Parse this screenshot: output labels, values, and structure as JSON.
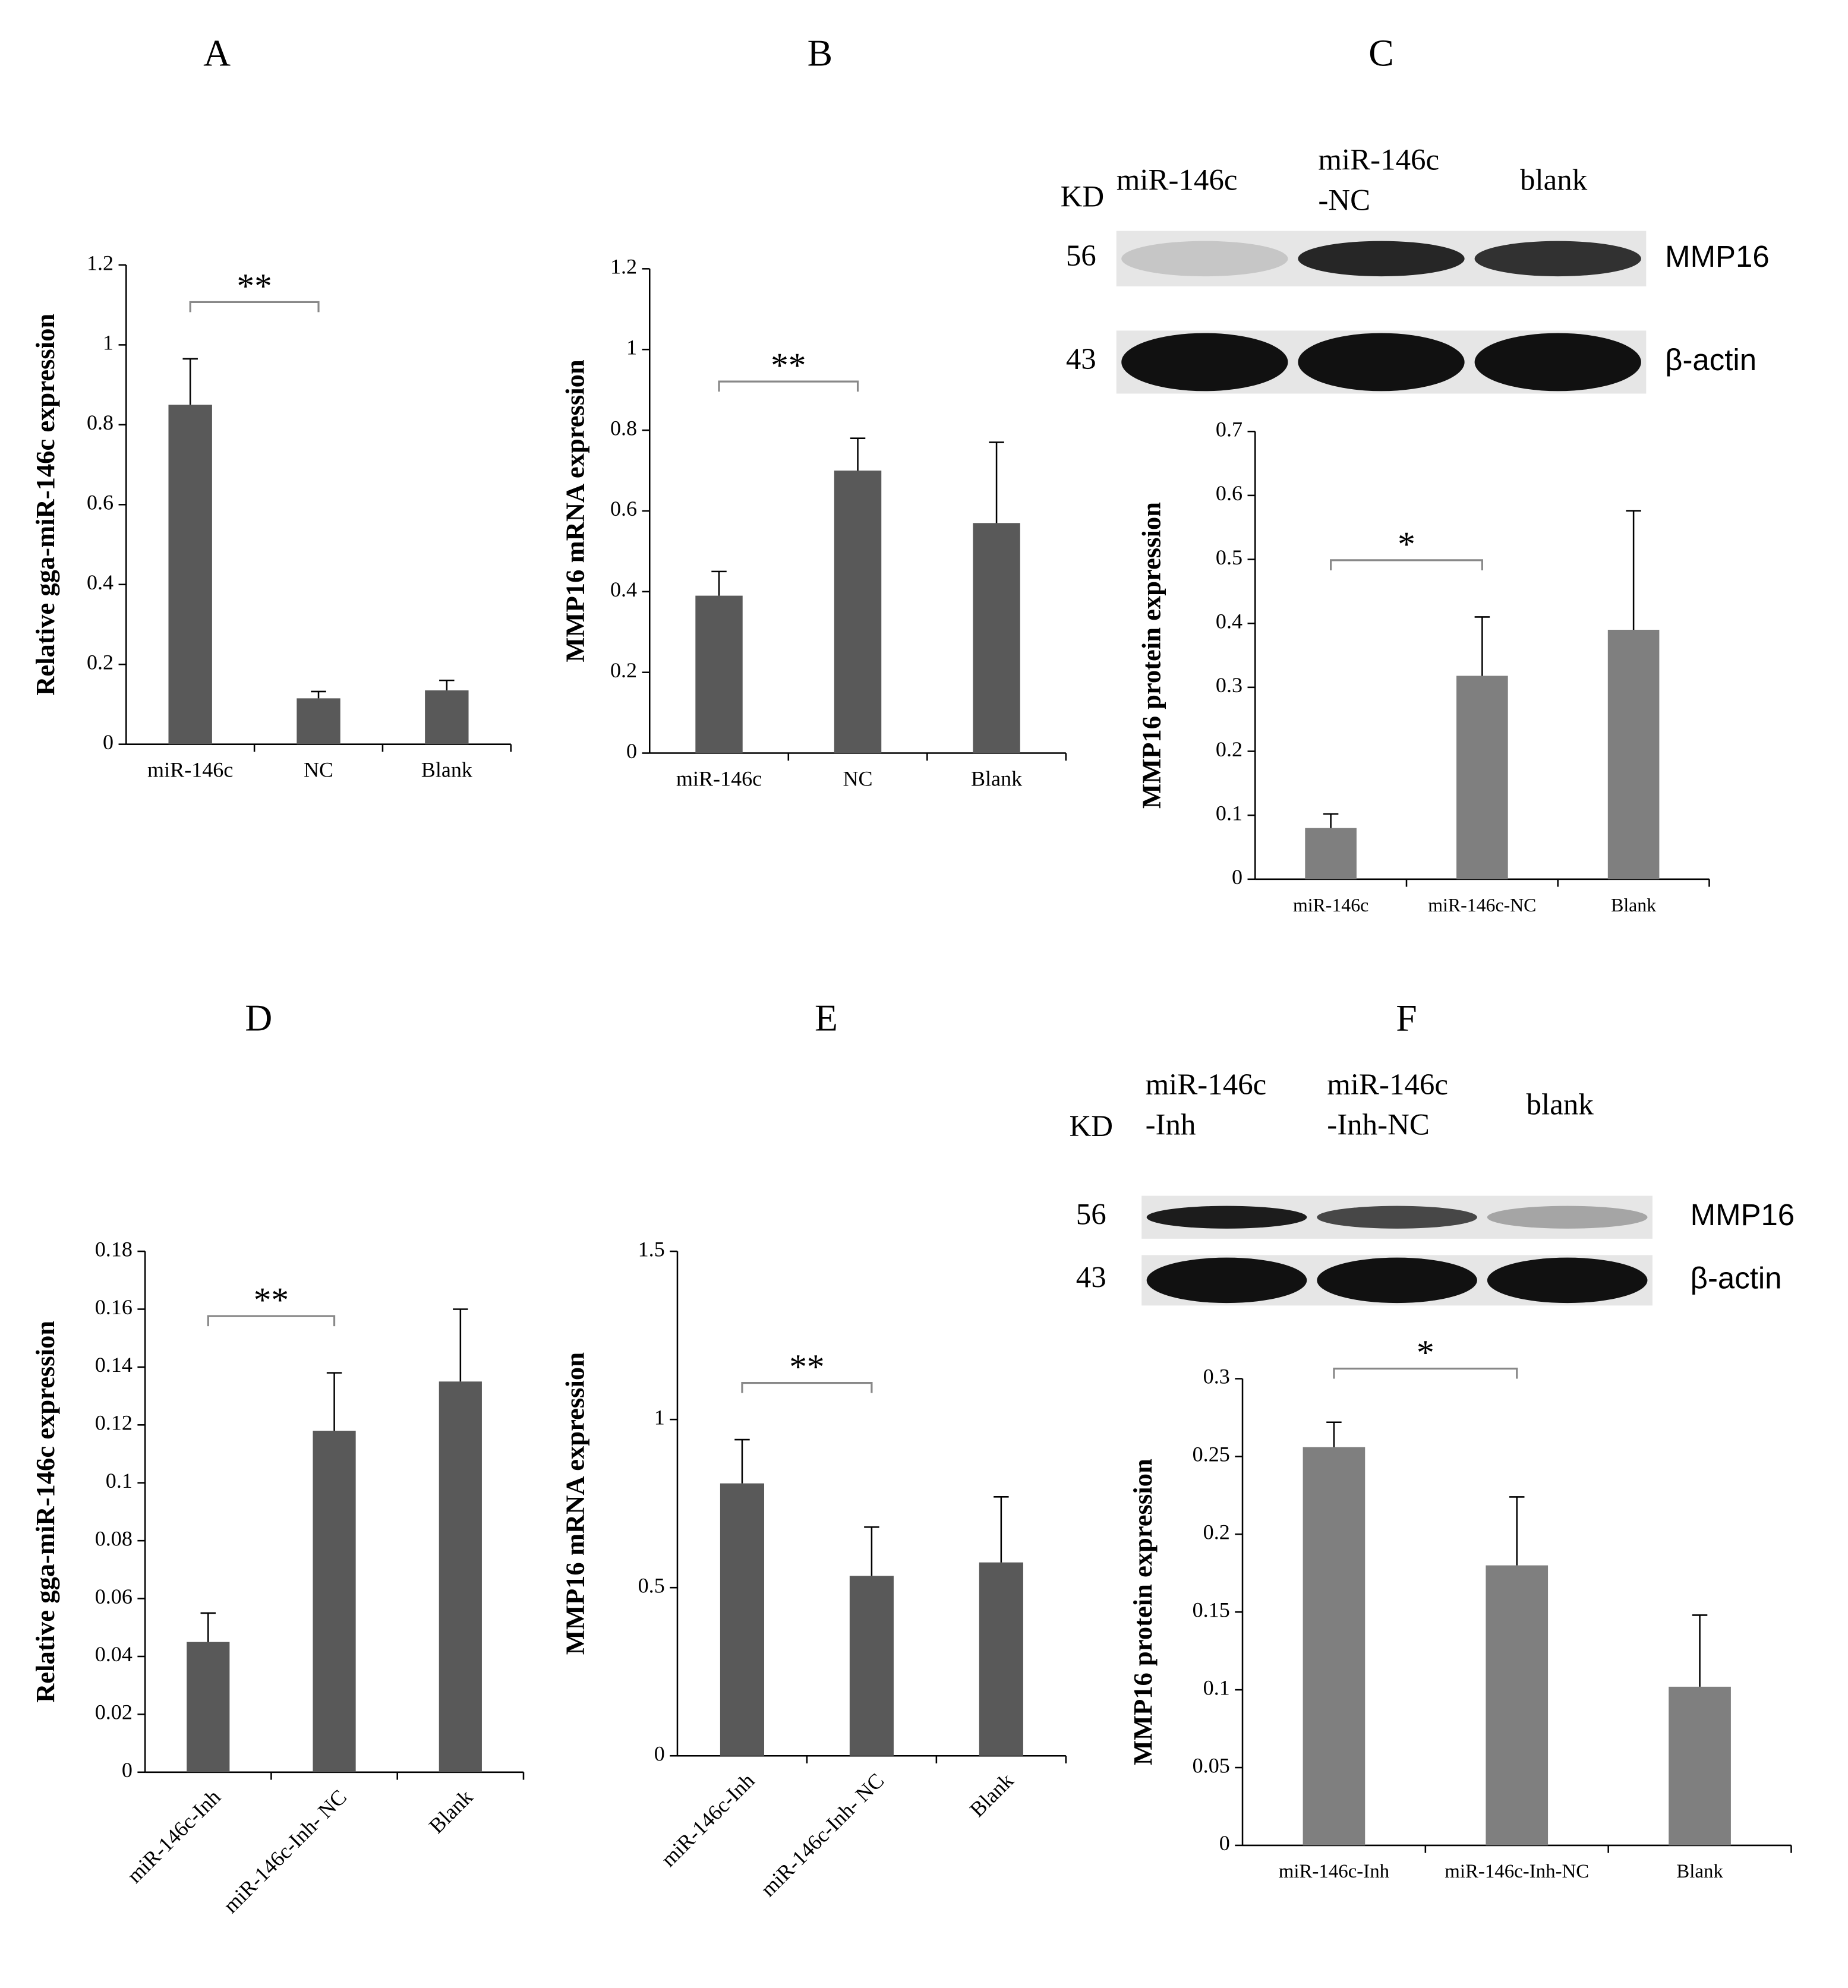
{
  "chart_data": [
    {
      "type": "bar",
      "panel": "A",
      "ylabel": "Relative gga-miR-146c expression",
      "categories": [
        "miR-146c",
        "NC",
        "Blank"
      ],
      "values": [
        0.85,
        0.115,
        0.135
      ],
      "errors": [
        0.115,
        0.017,
        0.025
      ],
      "color": "#595959",
      "ylim": [
        0,
        1.2
      ],
      "yticks": [
        0,
        0.2,
        0.4,
        0.6,
        0.8,
        1,
        1.2
      ],
      "significance": "**"
    },
    {
      "type": "bar",
      "panel": "B",
      "ylabel": "MMP16 mRNA expression",
      "categories": [
        "miR-146c",
        "NC",
        "Blank"
      ],
      "values": [
        0.39,
        0.7,
        0.57
      ],
      "errors": [
        0.06,
        0.08,
        0.2
      ],
      "color": "#595959",
      "ylim": [
        0,
        1.2
      ],
      "yticks": [
        0,
        0.2,
        0.4,
        0.6,
        0.8,
        1,
        1.2
      ],
      "significance": "**"
    },
    {
      "type": "bar",
      "panel": "C",
      "ylabel": "MMP16 protein expression",
      "categories": [
        "miR-146c",
        "miR-146c-NC",
        "Blank"
      ],
      "values": [
        0.08,
        0.318,
        0.39
      ],
      "errors": [
        0.022,
        0.092,
        0.186
      ],
      "color": "#7f7f7f",
      "ylim": [
        0,
        0.7
      ],
      "yticks": [
        0,
        0.1,
        0.2,
        0.3,
        0.4,
        0.5,
        0.6,
        0.7
      ],
      "significance": "*",
      "blot": {
        "kd_label": "KD",
        "lanes": [
          [
            "miR-146c"
          ],
          [
            "miR-146c",
            "-NC"
          ],
          [
            "blank"
          ]
        ],
        "bands": [
          {
            "size": "56",
            "protein": "MMP16"
          },
          {
            "size": "43",
            "protein": "β-actin"
          }
        ]
      }
    },
    {
      "type": "bar",
      "panel": "D",
      "ylabel": "Relative gga-miR-146c expression",
      "categories": [
        "miR-146c-Inh",
        "miR-146c-Inh- NC",
        "Blank"
      ],
      "values": [
        0.045,
        0.118,
        0.135
      ],
      "errors": [
        0.01,
        0.02,
        0.025
      ],
      "color": "#595959",
      "ylim": [
        0,
        0.18
      ],
      "yticks": [
        0,
        0.02,
        0.04,
        0.06,
        0.08,
        0.1,
        0.12,
        0.14,
        0.16,
        0.18
      ],
      "significance": "**"
    },
    {
      "type": "bar",
      "panel": "E",
      "ylabel": "MMP16 mRNA expression",
      "categories": [
        "miR-146c-Inh",
        "miR-146c-Inh- NC",
        "Blank"
      ],
      "values": [
        0.81,
        0.535,
        0.575
      ],
      "errors": [
        0.13,
        0.145,
        0.195
      ],
      "color": "#595959",
      "ylim": [
        0,
        1.5
      ],
      "yticks": [
        0,
        0.5,
        1,
        1.5
      ],
      "significance": "**"
    },
    {
      "type": "bar",
      "panel": "F",
      "ylabel": "MMP16 protein expression",
      "categories": [
        "miR-146c-Inh",
        "miR-146c-Inh-NC",
        "Blank"
      ],
      "values": [
        0.256,
        0.18,
        0.102
      ],
      "errors": [
        0.016,
        0.044,
        0.046
      ],
      "color": "#7f7f7f",
      "ylim": [
        0,
        0.3
      ],
      "yticks": [
        0,
        0.05,
        0.1,
        0.15,
        0.2,
        0.25,
        0.3
      ],
      "significance": "*",
      "blot": {
        "kd_label": "KD",
        "lanes": [
          [
            "miR-146c",
            "-Inh"
          ],
          [
            "miR-146c",
            "-Inh-NC"
          ],
          [
            "blank"
          ]
        ],
        "bands": [
          {
            "size": "56",
            "protein": "MMP16"
          },
          {
            "size": "43",
            "protein": "β-actin"
          }
        ]
      }
    }
  ]
}
